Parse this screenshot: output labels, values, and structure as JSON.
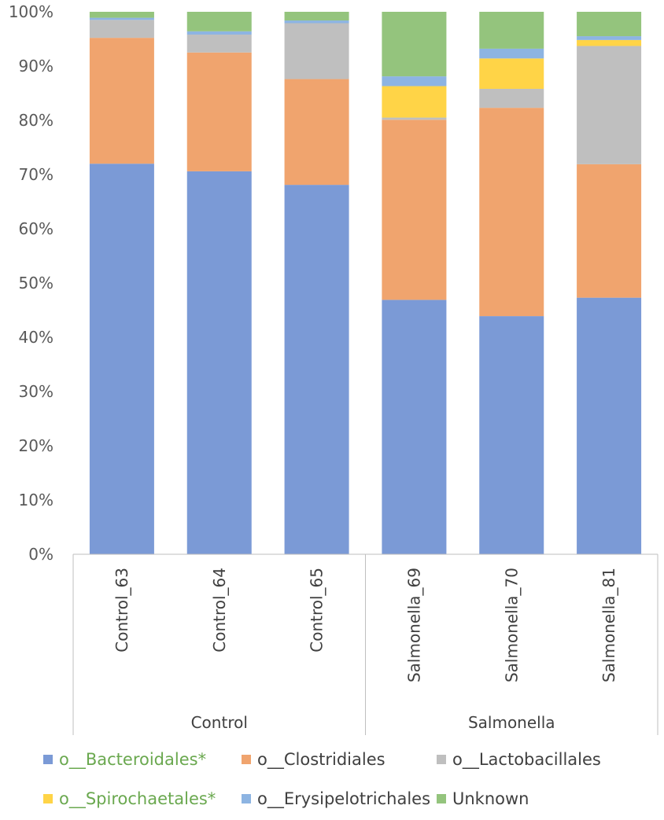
{
  "chart_data": {
    "type": "bar",
    "stacked": true,
    "percent": true,
    "ylim": [
      0,
      100
    ],
    "yticks": [
      "0%",
      "10%",
      "20%",
      "30%",
      "40%",
      "50%",
      "60%",
      "70%",
      "80%",
      "90%",
      "100%"
    ],
    "categories": [
      "Control_63",
      "Control_64",
      "Control_65",
      "Salmonella_69",
      "Salmonella_70",
      "Salmonella_81"
    ],
    "groups": [
      {
        "label": "Control",
        "count": 3
      },
      {
        "label": "Salmonella",
        "count": 3
      }
    ],
    "series": [
      {
        "name": "o__Bacteroidales*",
        "color": "#7b9ad6",
        "label_color": "#6aa84f",
        "values": [
          72.0,
          70.6,
          68.1,
          46.9,
          43.9,
          47.3
        ]
      },
      {
        "name": "o__Clostridiales",
        "color": "#f0a46e",
        "label_color": "#404040",
        "values": [
          23.2,
          21.9,
          19.5,
          33.2,
          38.4,
          24.6
        ]
      },
      {
        "name": "o__Lactobacillales",
        "color": "#bfbfbf",
        "label_color": "#404040",
        "values": [
          3.3,
          3.3,
          10.3,
          0.4,
          3.5,
          21.8
        ]
      },
      {
        "name": "o__Spirochaetales*",
        "color": "#ffd447",
        "label_color": "#6aa84f",
        "values": [
          0.0,
          0.0,
          0.0,
          5.8,
          5.6,
          1.1
        ]
      },
      {
        "name": "o__Erysipelotrichales",
        "color": "#8db4e2",
        "label_color": "#404040",
        "values": [
          0.4,
          0.6,
          0.5,
          1.8,
          1.8,
          0.7
        ]
      },
      {
        "name": "Unknown",
        "color": "#94c47d",
        "label_color": "#404040",
        "values": [
          1.1,
          3.6,
          1.6,
          11.9,
          6.8,
          4.5
        ]
      }
    ],
    "legend_position": "bottom"
  }
}
